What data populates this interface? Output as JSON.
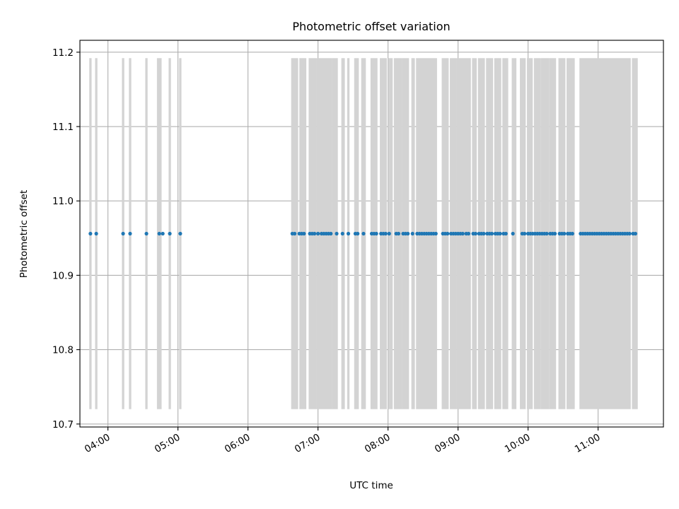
{
  "chart_data": {
    "type": "scatter",
    "title": "Photometric offset variation",
    "xlabel": "UTC time",
    "ylabel": "Photometric offset",
    "x_type": "time",
    "xlim": [
      "03:36",
      "11:56"
    ],
    "ylim": [
      10.696,
      11.216
    ],
    "grid": true,
    "colors": {
      "points": "#1f77b4",
      "bands": "#d3d3d3"
    },
    "x_ticks": [
      "04:00",
      "05:00",
      "06:00",
      "07:00",
      "08:00",
      "09:00",
      "10:00",
      "11:00"
    ],
    "y_ticks": [
      {
        "value": 10.7,
        "label": "10.7"
      },
      {
        "value": 10.8,
        "label": "10.8"
      },
      {
        "value": 10.9,
        "label": "10.9"
      },
      {
        "value": 11.0,
        "label": "11.0"
      },
      {
        "value": 11.1,
        "label": "11.1"
      },
      {
        "value": 11.2,
        "label": "11.2"
      }
    ],
    "band_range": [
      10.72,
      11.192
    ],
    "bands": [
      [
        "03:44",
        "03:46"
      ],
      [
        "03:49",
        "03:51"
      ],
      [
        "04:12",
        "04:14"
      ],
      [
        "04:18",
        "04:20"
      ],
      [
        "04:32",
        "04:34"
      ],
      [
        "04:42",
        "04:46"
      ],
      [
        "04:52",
        "04:54"
      ],
      [
        "05:01",
        "05:03"
      ],
      [
        "06:37",
        "06:43"
      ],
      [
        "06:44",
        "06:50"
      ],
      [
        "06:52",
        "06:59"
      ],
      [
        "06:59",
        "07:06"
      ],
      [
        "07:06",
        "07:12"
      ],
      [
        "07:12",
        "07:17"
      ],
      [
        "07:20",
        "07:23"
      ],
      [
        "07:25",
        "07:27"
      ],
      [
        "07:31",
        "07:35"
      ],
      [
        "07:37",
        "07:41"
      ],
      [
        "07:45",
        "07:51"
      ],
      [
        "07:53",
        "07:59"
      ],
      [
        "08:00",
        "08:04"
      ],
      [
        "08:05",
        "08:12"
      ],
      [
        "08:12",
        "08:18"
      ],
      [
        "08:20",
        "08:23"
      ],
      [
        "08:24",
        "08:42"
      ],
      [
        "08:46",
        "08:52"
      ],
      [
        "08:53",
        "08:59"
      ],
      [
        "08:59",
        "09:06"
      ],
      [
        "09:06",
        "09:11"
      ],
      [
        "09:12",
        "09:16"
      ],
      [
        "09:17",
        "09:23"
      ],
      [
        "09:24",
        "09:30"
      ],
      [
        "09:31",
        "09:37"
      ],
      [
        "09:38",
        "09:43"
      ],
      [
        "09:46",
        "09:50"
      ],
      [
        "09:53",
        "09:58"
      ],
      [
        "09:59",
        "10:04"
      ],
      [
        "10:05",
        "10:11"
      ],
      [
        "10:11",
        "10:18"
      ],
      [
        "10:18",
        "10:24"
      ],
      [
        "10:26",
        "10:32"
      ],
      [
        "10:33",
        "10:40"
      ],
      [
        "10:44",
        "11:28"
      ],
      [
        "11:29",
        "11:34"
      ]
    ],
    "x": [
      "03:45",
      "03:50",
      "04:13",
      "04:19",
      "04:33",
      "04:44",
      "04:47",
      "04:53",
      "05:02",
      "06:38",
      "06:40",
      "06:44",
      "06:46",
      "06:48",
      "06:53",
      "06:55",
      "06:57",
      "07:00",
      "07:03",
      "07:05",
      "07:07",
      "07:09",
      "07:11",
      "07:16",
      "07:21",
      "07:26",
      "07:32",
      "07:34",
      "07:39",
      "07:46",
      "07:48",
      "07:50",
      "07:54",
      "07:56",
      "07:58",
      "08:01",
      "08:07",
      "08:09",
      "08:13",
      "08:15",
      "08:17",
      "08:21",
      "08:25",
      "08:27",
      "08:29",
      "08:31",
      "08:33",
      "08:35",
      "08:37",
      "08:39",
      "08:41",
      "08:47",
      "08:49",
      "08:51",
      "08:54",
      "08:56",
      "08:58",
      "09:00",
      "09:02",
      "09:04",
      "09:07",
      "09:09",
      "09:13",
      "09:15",
      "09:18",
      "09:20",
      "09:22",
      "09:25",
      "09:27",
      "09:29",
      "09:32",
      "09:34",
      "09:36",
      "09:39",
      "09:41",
      "09:47",
      "09:55",
      "09:57",
      "10:00",
      "10:02",
      "10:04",
      "10:06",
      "10:08",
      "10:10",
      "10:12",
      "10:14",
      "10:16",
      "10:19",
      "10:21",
      "10:23",
      "10:27",
      "10:29",
      "10:31",
      "10:34",
      "10:36",
      "10:38",
      "10:45",
      "10:47",
      "10:49",
      "10:51",
      "10:53",
      "10:55",
      "10:57",
      "10:59",
      "11:01",
      "11:03",
      "11:05",
      "11:07",
      "11:09",
      "11:11",
      "11:13",
      "11:15",
      "11:17",
      "11:19",
      "11:21",
      "11:23",
      "11:25",
      "11:27",
      "11:30",
      "11:32"
    ],
    "y_value": 10.956
  }
}
